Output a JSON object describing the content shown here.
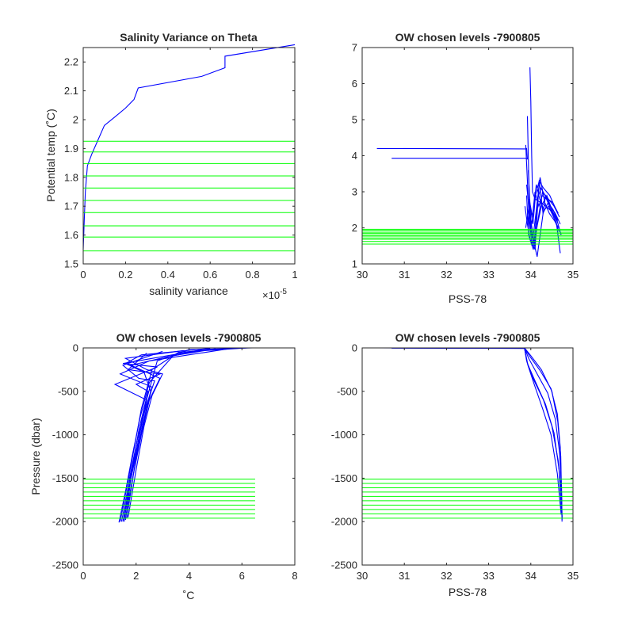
{
  "chart_data": [
    {
      "id": "ax1",
      "type": "line",
      "title": "Salinity Variance on Theta",
      "xlabel": "salinity variance",
      "ylabel": "Potential temp (˚C)",
      "x_exponent": "×10",
      "x_exponent_power": "-5",
      "xlim": [
        0,
        1
      ],
      "ylim": [
        1.5,
        2.25
      ],
      "xticks": [
        0,
        0.2,
        0.4,
        0.6,
        0.8,
        1
      ],
      "xtick_labels": [
        "0",
        "0.2",
        "0.4",
        "0.6",
        "0.8",
        "1"
      ],
      "yticks": [
        1.5,
        1.6,
        1.7,
        1.8,
        1.9,
        2.0,
        2.1,
        2.2
      ],
      "ytick_labels": [
        "1.5",
        "1.6",
        "1.7",
        "1.8",
        "1.9",
        "2",
        "2.1",
        "2.2"
      ],
      "series": [
        {
          "color": "#0000ff",
          "x": [
            0.0,
            0.005,
            0.01,
            0.02,
            0.04,
            0.07,
            0.1,
            0.15,
            0.2,
            0.24,
            0.26,
            0.56,
            0.67,
            0.67,
            1.0
          ],
          "y": [
            1.55,
            1.65,
            1.75,
            1.84,
            1.88,
            1.93,
            1.98,
            2.01,
            2.04,
            2.07,
            2.11,
            2.15,
            2.18,
            2.22,
            2.26
          ]
        }
      ],
      "levels": {
        "color": "#00ff00",
        "x_range": [
          0,
          1
        ],
        "y": [
          1.545,
          1.593,
          1.632,
          1.678,
          1.72,
          1.763,
          1.805,
          1.848,
          1.888,
          1.925
        ]
      }
    },
    {
      "id": "ax2",
      "type": "line",
      "title": "OW chosen levels -7900805",
      "xlabel": "PSS-78",
      "ylabel": "",
      "xlim": [
        30,
        35
      ],
      "ylim": [
        1,
        7
      ],
      "xticks": [
        30,
        31,
        32,
        33,
        34,
        35
      ],
      "xtick_labels": [
        "30",
        "31",
        "32",
        "33",
        "34",
        "35"
      ],
      "yticks": [
        1,
        2,
        3,
        4,
        5,
        6,
        7
      ],
      "ytick_labels": [
        "1",
        "2",
        "3",
        "4",
        "5",
        "6",
        "7"
      ],
      "series": [
        {
          "color": "#0000ff",
          "x": [
            30.35,
            33.88,
            33.9,
            33.92
          ],
          "y": [
            4.2,
            4.19,
            4.2,
            3.9
          ]
        },
        {
          "color": "#0000ff",
          "x": [
            30.7,
            33.88,
            33.92
          ],
          "y": [
            3.93,
            3.93,
            3.9
          ]
        },
        {
          "color": "#0000ff",
          "x": [
            33.98,
            34.0,
            34.02,
            34.04,
            34.1,
            34.3,
            34.5,
            34.6,
            34.7
          ],
          "y": [
            6.45,
            5.5,
            4.0,
            3.0,
            2.8,
            2.65,
            2.45,
            2.2,
            1.3
          ]
        },
        {
          "color": "#0000ff",
          "x": [
            33.92,
            33.95,
            33.97,
            34.0,
            34.05,
            34.15,
            34.35,
            34.55,
            34.68
          ],
          "y": [
            5.1,
            3.5,
            2.6,
            2.0,
            1.7,
            1.2,
            2.9,
            2.6,
            2.3
          ]
        },
        {
          "color": "#0000ff",
          "x": [
            33.88,
            33.93,
            33.96,
            34.02,
            34.1,
            34.2,
            34.3,
            34.45,
            34.6
          ],
          "y": [
            4.3,
            3.0,
            2.2,
            1.6,
            1.4,
            3.3,
            3.1,
            2.9,
            2.5
          ]
        },
        {
          "color": "#0000ff",
          "x": [
            33.9,
            33.96,
            34.0,
            34.08,
            34.18,
            34.28,
            34.4,
            34.52,
            34.65
          ],
          "y": [
            3.2,
            2.5,
            1.9,
            1.5,
            2.3,
            3.0,
            2.8,
            2.7,
            2.4
          ]
        },
        {
          "color": "#0000ff",
          "x": [
            33.86,
            33.92,
            33.98,
            34.06,
            34.14,
            34.25,
            34.38,
            34.5,
            34.62
          ],
          "y": [
            2.6,
            2.1,
            1.7,
            1.4,
            2.0,
            2.6,
            2.9,
            2.5,
            2.2
          ]
        },
        {
          "color": "#0000ff",
          "x": [
            33.9,
            33.95,
            34.03,
            34.12,
            34.22,
            34.33,
            34.44,
            34.56,
            34.66
          ],
          "y": [
            2.9,
            1.8,
            1.5,
            2.4,
            3.4,
            2.7,
            2.4,
            2.2,
            2.0
          ]
        },
        {
          "color": "#0000ff",
          "x": [
            33.94,
            34.0,
            34.08,
            34.16,
            34.24,
            34.34,
            34.46,
            34.58,
            34.7
          ],
          "y": [
            3.6,
            2.2,
            1.6,
            2.8,
            3.1,
            2.9,
            2.6,
            2.4,
            2.1
          ]
        },
        {
          "color": "#0000ff",
          "x": [
            33.92,
            33.99,
            34.06,
            34.13,
            34.21,
            34.31,
            34.42,
            34.54,
            34.67
          ],
          "y": [
            2.4,
            1.9,
            2.5,
            3.2,
            2.8,
            2.5,
            2.6,
            2.3,
            1.9
          ]
        },
        {
          "color": "#0000ff",
          "x": [
            33.96,
            34.04,
            34.1,
            34.19,
            34.27,
            34.37,
            34.48,
            34.6,
            34.72
          ],
          "y": [
            2.8,
            2.3,
            3.0,
            2.6,
            2.9,
            2.8,
            2.5,
            2.3,
            1.8
          ]
        },
        {
          "color": "#0000ff",
          "x": [
            33.88,
            33.97,
            34.05,
            34.11,
            34.2,
            34.29,
            34.41,
            34.53,
            34.64
          ],
          "y": [
            2.0,
            2.7,
            2.1,
            2.9,
            3.3,
            2.4,
            2.7,
            2.5,
            2.2
          ]
        }
      ],
      "levels": {
        "color": "#00ff00",
        "x_range": [
          30,
          35
        ],
        "y": [
          1.55,
          1.62,
          1.68,
          1.72,
          1.77,
          1.8,
          1.85,
          1.88,
          1.93,
          1.96
        ]
      }
    },
    {
      "id": "ax3",
      "type": "line",
      "title": "OW chosen levels -7900805",
      "xlabel": "˚C",
      "ylabel": "Pressure (dbar)",
      "xlim": [
        0,
        8
      ],
      "ylim": [
        -2500,
        0
      ],
      "xticks": [
        0,
        2,
        4,
        6,
        8
      ],
      "xtick_labels": [
        "0",
        "2",
        "4",
        "6",
        "8"
      ],
      "yticks": [
        -2500,
        -2000,
        -1500,
        -1000,
        -500,
        0
      ],
      "ytick_labels": [
        "-2500",
        "-2000",
        "-1500",
        "-1000",
        "-500",
        "0"
      ],
      "series": [
        {
          "color": "#0000ff",
          "x": [
            6.4,
            4.0,
            2.8,
            2.3,
            2.0,
            1.7,
            1.45
          ],
          "y": [
            0,
            -20,
            -150,
            -700,
            -1200,
            -1600,
            -2000
          ]
        },
        {
          "color": "#0000ff",
          "x": [
            6.2,
            3.6,
            2.6,
            2.2,
            1.9,
            1.65,
            1.4
          ],
          "y": [
            0,
            -50,
            -250,
            -700,
            -1200,
            -1600,
            -2000
          ]
        },
        {
          "color": "#0000ff",
          "x": [
            5.5,
            2.5,
            1.4,
            2.6,
            2.25,
            1.95,
            1.7,
            1.5
          ],
          "y": [
            -10,
            -150,
            -300,
            -450,
            -900,
            -1300,
            -1650,
            -2000
          ]
        },
        {
          "color": "#0000ff",
          "x": [
            4.5,
            1.5,
            2.8,
            1.2,
            2.4,
            2.1,
            1.8,
            1.55
          ],
          "y": [
            -20,
            -180,
            -220,
            -420,
            -600,
            -1050,
            -1500,
            -1980
          ]
        },
        {
          "color": "#0000ff",
          "x": [
            5.0,
            3.2,
            1.8,
            2.9,
            2.5,
            2.2,
            1.9,
            1.6
          ],
          "y": [
            -10,
            -100,
            -200,
            -350,
            -600,
            -1000,
            -1450,
            -1960
          ]
        },
        {
          "color": "#0000ff",
          "x": [
            3.8,
            1.6,
            2.4,
            3.0,
            2.6,
            2.3,
            2.0,
            1.7
          ],
          "y": [
            -30,
            -120,
            -250,
            -300,
            -550,
            -900,
            -1400,
            -1950
          ]
        },
        {
          "color": "#0000ff",
          "x": [
            3.0,
            1.5,
            2.1,
            2.7,
            2.4,
            2.05,
            1.75,
            1.55
          ],
          "y": [
            -40,
            -200,
            -350,
            -380,
            -650,
            -1050,
            -1500,
            -2000
          ]
        },
        {
          "color": "#0000ff",
          "x": [
            6.0,
            4.4,
            3.4,
            2.5,
            2.15,
            1.85,
            1.6,
            1.35
          ],
          "y": [
            0,
            -30,
            -90,
            -400,
            -800,
            -1250,
            -1650,
            -2010
          ]
        },
        {
          "color": "#0000ff",
          "x": [
            2.4,
            1.7,
            2.9,
            2.0,
            2.45,
            2.1,
            1.85,
            1.6
          ],
          "y": [
            -60,
            -250,
            -300,
            -420,
            -500,
            -950,
            -1400,
            -1980
          ]
        },
        {
          "color": "#0000ff",
          "x": [
            4.8,
            2.2,
            1.6,
            2.3,
            2.55,
            2.25,
            1.95,
            1.65
          ],
          "y": [
            -5,
            -80,
            -180,
            -280,
            -500,
            -880,
            -1350,
            -1960
          ]
        }
      ],
      "levels": {
        "color": "#00ff00",
        "x_range": [
          0,
          6.5
        ],
        "y": [
          -1510,
          -1560,
          -1610,
          -1660,
          -1710,
          -1760,
          -1810,
          -1860,
          -1910,
          -1960
        ]
      }
    },
    {
      "id": "ax4",
      "type": "line",
      "title": "OW chosen levels -7900805",
      "xlabel": "PSS-78",
      "ylabel": "",
      "xlim": [
        30,
        35
      ],
      "ylim": [
        -2500,
        0
      ],
      "xticks": [
        30,
        31,
        32,
        33,
        34,
        35
      ],
      "xtick_labels": [
        "30",
        "31",
        "32",
        "33",
        "34",
        "35"
      ],
      "yticks": [
        -2500,
        -2000,
        -1500,
        -1000,
        -500,
        0
      ],
      "ytick_labels": [
        "-2500",
        "-2000",
        "-1500",
        "-1000",
        "-500",
        "0"
      ],
      "series": [
        {
          "color": "#0000ff",
          "x": [
            30.35,
            31.5,
            32.5,
            33.5,
            33.85
          ],
          "y": [
            0,
            -2,
            -3,
            -5,
            -5
          ]
        },
        {
          "color": "#0000ff",
          "x": [
            30.7,
            32.0,
            33.0,
            33.85
          ],
          "y": [
            -3,
            -4,
            -5,
            -6
          ]
        },
        {
          "color": "#0000ff",
          "x": [
            33.85,
            33.9,
            34.05,
            34.3,
            34.5,
            34.65,
            34.72,
            34.74
          ],
          "y": [
            0,
            -150,
            -350,
            -600,
            -900,
            -1300,
            -1650,
            -2000
          ]
        },
        {
          "color": "#0000ff",
          "x": [
            33.85,
            33.95,
            34.15,
            34.4,
            34.58,
            34.68,
            34.73,
            34.74
          ],
          "y": [
            0,
            -120,
            -300,
            -520,
            -820,
            -1200,
            -1600,
            -1980
          ]
        },
        {
          "color": "#0000ff",
          "x": [
            33.85,
            33.98,
            34.22,
            34.48,
            34.63,
            34.7,
            34.74
          ],
          "y": [
            0,
            -100,
            -260,
            -470,
            -760,
            -1150,
            -1950
          ]
        },
        {
          "color": "#0000ff",
          "x": [
            33.85,
            33.92,
            34.1,
            34.35,
            34.55,
            34.67,
            34.73
          ],
          "y": [
            0,
            -180,
            -380,
            -650,
            -980,
            -1400,
            -1900
          ]
        },
        {
          "color": "#0000ff",
          "x": [
            33.85,
            34.0,
            34.25,
            34.5,
            34.64,
            34.71,
            34.74
          ],
          "y": [
            0,
            -90,
            -250,
            -500,
            -850,
            -1250,
            -1970
          ]
        },
        {
          "color": "#0000ff",
          "x": [
            33.85,
            33.93,
            34.08,
            34.28,
            34.48,
            34.63,
            34.72
          ],
          "y": [
            0,
            -200,
            -420,
            -700,
            -1000,
            -1450,
            -1920
          ]
        }
      ],
      "levels": {
        "color": "#00ff00",
        "x_range": [
          30,
          35
        ],
        "y": [
          -1510,
          -1560,
          -1610,
          -1660,
          -1710,
          -1760,
          -1810,
          -1860,
          -1910,
          -1960
        ]
      }
    }
  ]
}
